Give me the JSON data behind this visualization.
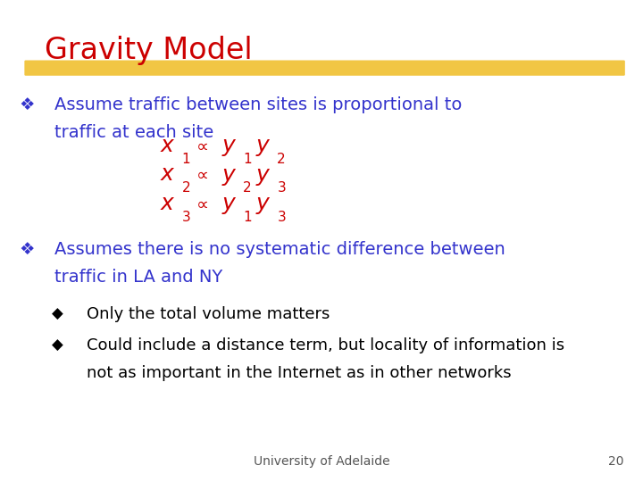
{
  "title": "Gravity Model",
  "title_color": "#CC0000",
  "title_font": "Comic Sans MS",
  "title_fontsize": 24,
  "background_color": "#FFFFFF",
  "highlight_color": "#F0C030",
  "bullet_color": "#3333CC",
  "bullet_fontsize": 14,
  "formula_color_x": "#CC0000",
  "formula_color_y": "#CC0000",
  "sub_bullet_color": "#000000",
  "sub_bullet_fontsize": 13,
  "footer_text": "University of Adelaide",
  "footer_page": "20",
  "footer_color": "#555555",
  "footer_fontsize": 10,
  "bullet1_line1": "Assume traffic between sites is proportional to",
  "bullet1_line2": "traffic at each site",
  "bullet2_line1": "Assumes there is no systematic difference between",
  "bullet2_line2": "traffic in LA and NY",
  "sub1": "Only the total volume matters",
  "sub2_line1": "Could include a distance term, but locality of information is",
  "sub2_line2": "not as important in the Internet as in other networks",
  "formulas": [
    {
      "x_sub": "1",
      "y1_sub": "1",
      "y2_sub": "2"
    },
    {
      "x_sub": "2",
      "y1_sub": "2",
      "y2_sub": "3"
    },
    {
      "x_sub": "3",
      "y1_sub": "1",
      "y2_sub": "3"
    }
  ]
}
